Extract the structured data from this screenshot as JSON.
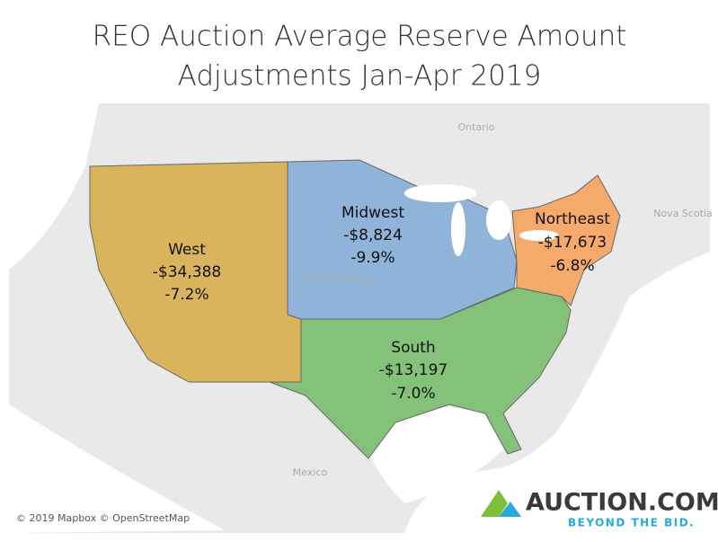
{
  "title": [
    "REO Auction Average Reserve Amount",
    "Adjustments Jan-Apr 2019"
  ],
  "regions": [
    {
      "name": "West",
      "amount": "-$34,388",
      "change": "-7.2%"
    },
    {
      "name": "Midwest",
      "amount": "-$8,824",
      "change": "-9.9%"
    },
    {
      "name": "Northeast",
      "amount": "-$17,673",
      "change": "-6.8%"
    },
    {
      "name": "South",
      "amount": "-$13,197",
      "change": "-7.0%"
    }
  ],
  "map_labels": [
    "Ontario",
    "Nova Scotia",
    "United States",
    "Mexico"
  ],
  "attribution": "© 2019 Mapbox © OpenStreetMap",
  "logo": {
    "name": "AUCTION.COM",
    "tagline": "BEYOND THE BID."
  }
}
